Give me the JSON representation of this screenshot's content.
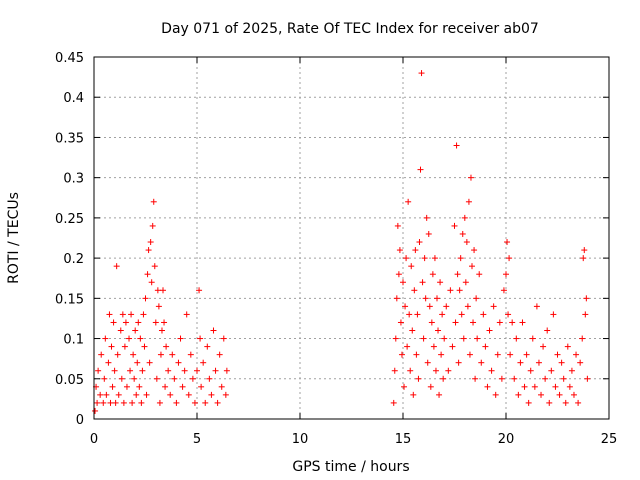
{
  "chart_data": {
    "type": "scatter",
    "title": "Day 071 of 2025, Rate Of TEC Index for receiver ab07",
    "xlabel": "GPS time / hours",
    "ylabel": "ROTI / TECUs",
    "xlim": [
      0,
      25
    ],
    "ylim": [
      0,
      0.45
    ],
    "xticks": [
      "0",
      "5",
      "10",
      "15",
      "20",
      "25"
    ],
    "yticks": [
      "0",
      "0.05",
      "0.1",
      "0.15",
      "0.2",
      "0.25",
      "0.3",
      "0.35",
      "0.4",
      "0.45"
    ],
    "grid": true,
    "marker": "plus",
    "color": "#ff0000",
    "series": [
      {
        "values": [
          [
            0.05,
            0.01
          ],
          [
            0.1,
            0.04
          ],
          [
            0.15,
            0.02
          ],
          [
            0.2,
            0.06
          ],
          [
            0.3,
            0.03
          ],
          [
            0.35,
            0.08
          ],
          [
            0.45,
            0.02
          ],
          [
            0.5,
            0.05
          ],
          [
            0.55,
            0.1
          ],
          [
            0.6,
            0.03
          ],
          [
            0.7,
            0.07
          ],
          [
            0.75,
            0.13
          ],
          [
            0.8,
            0.02
          ],
          [
            0.85,
            0.09
          ],
          [
            0.9,
            0.04
          ],
          [
            0.95,
            0.12
          ],
          [
            1.0,
            0.06
          ],
          [
            1.05,
            0.02
          ],
          [
            1.1,
            0.19
          ],
          [
            1.15,
            0.08
          ],
          [
            1.2,
            0.03
          ],
          [
            1.3,
            0.11
          ],
          [
            1.35,
            0.05
          ],
          [
            1.4,
            0.13
          ],
          [
            1.45,
            0.02
          ],
          [
            1.5,
            0.09
          ],
          [
            1.55,
            0.12
          ],
          [
            1.6,
            0.04
          ],
          [
            1.7,
            0.1
          ],
          [
            1.75,
            0.06
          ],
          [
            1.8,
            0.13
          ],
          [
            1.85,
            0.02
          ],
          [
            1.9,
            0.08
          ],
          [
            1.95,
            0.05
          ],
          [
            2.0,
            0.11
          ],
          [
            2.05,
            0.03
          ],
          [
            2.1,
            0.07
          ],
          [
            2.15,
            0.12
          ],
          [
            2.2,
            0.04
          ],
          [
            2.25,
            0.1
          ],
          [
            2.3,
            0.02
          ],
          [
            2.35,
            0.06
          ],
          [
            2.4,
            0.13
          ],
          [
            2.45,
            0.09
          ],
          [
            2.5,
            0.15
          ],
          [
            2.55,
            0.03
          ],
          [
            2.6,
            0.18
          ],
          [
            2.65,
            0.21
          ],
          [
            2.7,
            0.07
          ],
          [
            2.75,
            0.22
          ],
          [
            2.8,
            0.17
          ],
          [
            2.85,
            0.24
          ],
          [
            2.9,
            0.27
          ],
          [
            2.95,
            0.19
          ],
          [
            3.0,
            0.12
          ],
          [
            3.05,
            0.05
          ],
          [
            3.1,
            0.16
          ],
          [
            3.15,
            0.14
          ],
          [
            3.2,
            0.02
          ],
          [
            3.25,
            0.08
          ],
          [
            3.3,
            0.11
          ],
          [
            3.35,
            0.16
          ],
          [
            3.4,
            0.12
          ],
          [
            3.45,
            0.04
          ],
          [
            3.5,
            0.09
          ],
          [
            3.6,
            0.06
          ],
          [
            3.7,
            0.03
          ],
          [
            3.8,
            0.08
          ],
          [
            3.9,
            0.05
          ],
          [
            4.0,
            0.02
          ],
          [
            4.1,
            0.07
          ],
          [
            4.2,
            0.1
          ],
          [
            4.3,
            0.04
          ],
          [
            4.4,
            0.06
          ],
          [
            4.5,
            0.13
          ],
          [
            4.6,
            0.03
          ],
          [
            4.7,
            0.08
          ],
          [
            4.8,
            0.05
          ],
          [
            4.9,
            0.02
          ],
          [
            5.0,
            0.06
          ],
          [
            5.1,
            0.16
          ],
          [
            5.15,
            0.1
          ],
          [
            5.2,
            0.04
          ],
          [
            5.3,
            0.07
          ],
          [
            5.4,
            0.02
          ],
          [
            5.5,
            0.09
          ],
          [
            5.6,
            0.05
          ],
          [
            5.7,
            0.03
          ],
          [
            5.8,
            0.11
          ],
          [
            5.9,
            0.06
          ],
          [
            6.0,
            0.02
          ],
          [
            6.1,
            0.08
          ],
          [
            6.2,
            0.04
          ],
          [
            6.3,
            0.1
          ],
          [
            6.4,
            0.03
          ],
          [
            6.45,
            0.06
          ],
          [
            14.55,
            0.02
          ],
          [
            14.6,
            0.06
          ],
          [
            14.65,
            0.1
          ],
          [
            14.7,
            0.15
          ],
          [
            14.75,
            0.24
          ],
          [
            14.8,
            0.18
          ],
          [
            14.85,
            0.21
          ],
          [
            14.9,
            0.12
          ],
          [
            14.95,
            0.08
          ],
          [
            15.0,
            0.17
          ],
          [
            15.05,
            0.04
          ],
          [
            15.1,
            0.14
          ],
          [
            15.15,
            0.2
          ],
          [
            15.2,
            0.09
          ],
          [
            15.25,
            0.27
          ],
          [
            15.3,
            0.13
          ],
          [
            15.35,
            0.06
          ],
          [
            15.4,
            0.19
          ],
          [
            15.45,
            0.11
          ],
          [
            15.5,
            0.03
          ],
          [
            15.55,
            0.16
          ],
          [
            15.6,
            0.21
          ],
          [
            15.65,
            0.08
          ],
          [
            15.7,
            0.13
          ],
          [
            15.75,
            0.05
          ],
          [
            15.8,
            0.22
          ],
          [
            15.85,
            0.31
          ],
          [
            15.9,
            0.43
          ],
          [
            15.95,
            0.17
          ],
          [
            16.0,
            0.1
          ],
          [
            16.05,
            0.2
          ],
          [
            16.1,
            0.15
          ],
          [
            16.15,
            0.25
          ],
          [
            16.2,
            0.07
          ],
          [
            16.25,
            0.23
          ],
          [
            16.3,
            0.14
          ],
          [
            16.35,
            0.04
          ],
          [
            16.4,
            0.12
          ],
          [
            16.45,
            0.18
          ],
          [
            16.5,
            0.09
          ],
          [
            16.55,
            0.2
          ],
          [
            16.6,
            0.06
          ],
          [
            16.65,
            0.15
          ],
          [
            16.7,
            0.11
          ],
          [
            16.75,
            0.03
          ],
          [
            16.8,
            0.17
          ],
          [
            16.85,
            0.08
          ],
          [
            16.9,
            0.13
          ],
          [
            16.95,
            0.05
          ],
          [
            17.0,
            0.1
          ],
          [
            17.1,
            0.14
          ],
          [
            17.2,
            0.06
          ],
          [
            17.3,
            0.16
          ],
          [
            17.4,
            0.09
          ],
          [
            17.5,
            0.24
          ],
          [
            17.55,
            0.12
          ],
          [
            17.6,
            0.34
          ],
          [
            17.65,
            0.18
          ],
          [
            17.7,
            0.07
          ],
          [
            17.75,
            0.16
          ],
          [
            17.8,
            0.2
          ],
          [
            17.85,
            0.13
          ],
          [
            17.9,
            0.23
          ],
          [
            17.95,
            0.1
          ],
          [
            18.0,
            0.25
          ],
          [
            18.05,
            0.17
          ],
          [
            18.1,
            0.22
          ],
          [
            18.15,
            0.14
          ],
          [
            18.2,
            0.27
          ],
          [
            18.25,
            0.08
          ],
          [
            18.3,
            0.3
          ],
          [
            18.35,
            0.19
          ],
          [
            18.4,
            0.12
          ],
          [
            18.45,
            0.21
          ],
          [
            18.5,
            0.05
          ],
          [
            18.55,
            0.15
          ],
          [
            18.6,
            0.1
          ],
          [
            18.7,
            0.18
          ],
          [
            18.8,
            0.07
          ],
          [
            18.9,
            0.13
          ],
          [
            19.0,
            0.09
          ],
          [
            19.1,
            0.04
          ],
          [
            19.2,
            0.11
          ],
          [
            19.3,
            0.06
          ],
          [
            19.4,
            0.14
          ],
          [
            19.5,
            0.03
          ],
          [
            19.6,
            0.08
          ],
          [
            19.7,
            0.12
          ],
          [
            19.8,
            0.05
          ],
          [
            19.9,
            0.16
          ],
          [
            20.0,
            0.18
          ],
          [
            20.05,
            0.22
          ],
          [
            20.1,
            0.13
          ],
          [
            20.15,
            0.2
          ],
          [
            20.2,
            0.08
          ],
          [
            20.3,
            0.12
          ],
          [
            20.4,
            0.05
          ],
          [
            20.5,
            0.1
          ],
          [
            20.6,
            0.03
          ],
          [
            20.7,
            0.07
          ],
          [
            20.8,
            0.12
          ],
          [
            20.9,
            0.04
          ],
          [
            21.0,
            0.08
          ],
          [
            21.1,
            0.02
          ],
          [
            21.2,
            0.06
          ],
          [
            21.3,
            0.1
          ],
          [
            21.4,
            0.04
          ],
          [
            21.5,
            0.14
          ],
          [
            21.6,
            0.07
          ],
          [
            21.7,
            0.03
          ],
          [
            21.8,
            0.09
          ],
          [
            21.9,
            0.05
          ],
          [
            22.0,
            0.11
          ],
          [
            22.1,
            0.02
          ],
          [
            22.2,
            0.06
          ],
          [
            22.3,
            0.13
          ],
          [
            22.4,
            0.04
          ],
          [
            22.5,
            0.08
          ],
          [
            22.6,
            0.03
          ],
          [
            22.7,
            0.07
          ],
          [
            22.8,
            0.05
          ],
          [
            22.9,
            0.02
          ],
          [
            23.0,
            0.09
          ],
          [
            23.1,
            0.04
          ],
          [
            23.2,
            0.06
          ],
          [
            23.3,
            0.03
          ],
          [
            23.4,
            0.08
          ],
          [
            23.5,
            0.02
          ],
          [
            23.6,
            0.07
          ],
          [
            23.7,
            0.1
          ],
          [
            23.75,
            0.2
          ],
          [
            23.8,
            0.21
          ],
          [
            23.85,
            0.13
          ],
          [
            23.9,
            0.15
          ],
          [
            23.95,
            0.05
          ]
        ]
      }
    ]
  }
}
